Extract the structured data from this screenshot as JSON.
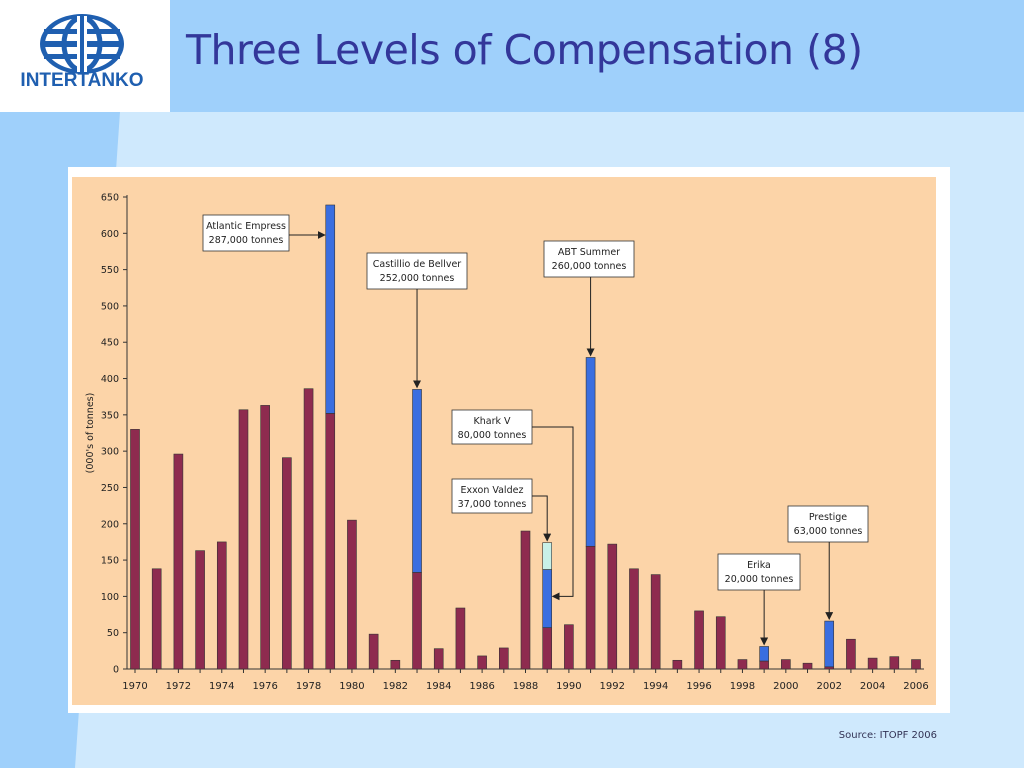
{
  "slide": {
    "title": "Three Levels of Compensation (8)",
    "source": "Source: ITOPF 2006"
  },
  "logo": {
    "text": "INTERTANKO",
    "icon": "globe-icon"
  },
  "colors": {
    "header_band": "#9fd0fb",
    "background": "#cfe9fd",
    "title": "#33379a",
    "plot_bg": "#fcd4a8",
    "bar_base": "#8e2b4f",
    "bar_large_spill": "#3a6ee0",
    "bar_exxon_valdez": "#c8f0e8"
  },
  "chart_data": {
    "type": "bar",
    "ylabel": "(000's of tonnes)",
    "xlabel": "",
    "ylim": [
      0,
      650
    ],
    "yticks": [
      0,
      50,
      100,
      150,
      200,
      250,
      300,
      350,
      400,
      450,
      500,
      550,
      600,
      650
    ],
    "xtick_labels": [
      "1970",
      "1972",
      "1974",
      "1976",
      "1978",
      "1980",
      "1982",
      "1984",
      "1986",
      "1988",
      "1990",
      "1992",
      "1994",
      "1996",
      "1998",
      "2000",
      "2002",
      "2004",
      "2006"
    ],
    "years": [
      1970,
      1971,
      1972,
      1973,
      1974,
      1975,
      1976,
      1977,
      1978,
      1979,
      1980,
      1981,
      1982,
      1983,
      1984,
      1985,
      1986,
      1987,
      1988,
      1989,
      1990,
      1991,
      1992,
      1993,
      1994,
      1995,
      1996,
      1997,
      1998,
      1999,
      2000,
      2001,
      2002,
      2003,
      2004,
      2005,
      2006
    ],
    "series": [
      {
        "key": "base",
        "values": [
          330,
          138,
          296,
          163,
          175,
          357,
          363,
          291,
          386,
          352,
          205,
          48,
          12,
          133,
          28,
          84,
          18,
          29,
          190,
          57,
          61,
          169,
          172,
          138,
          130,
          12,
          80,
          72,
          13,
          11,
          13,
          8,
          3,
          41,
          15,
          17,
          13
        ]
      },
      {
        "key": "large_spill",
        "values": [
          0,
          0,
          0,
          0,
          0,
          0,
          0,
          0,
          0,
          287,
          0,
          0,
          0,
          252,
          0,
          0,
          0,
          0,
          0,
          80,
          0,
          260,
          0,
          0,
          0,
          0,
          0,
          0,
          0,
          20,
          0,
          0,
          63,
          0,
          0,
          0,
          0
        ]
      },
      {
        "key": "exxon_valdez",
        "values": [
          0,
          0,
          0,
          0,
          0,
          0,
          0,
          0,
          0,
          0,
          0,
          0,
          0,
          0,
          0,
          0,
          0,
          0,
          0,
          37,
          0,
          0,
          0,
          0,
          0,
          0,
          0,
          0,
          0,
          0,
          0,
          0,
          0,
          0,
          0,
          0,
          0
        ]
      }
    ],
    "annotations": [
      {
        "line1": "Atlantic Empress",
        "line2": "287,000 tonnes",
        "year": 1979
      },
      {
        "line1": "Castillio de Bellver",
        "line2": "252,000 tonnes",
        "year": 1983
      },
      {
        "line1": "ABT Summer",
        "line2": "260,000 tonnes",
        "year": 1991
      },
      {
        "line1": "Khark V",
        "line2": "80,000 tonnes",
        "year": 1989
      },
      {
        "line1": "Exxon Valdez",
        "line2": "37,000 tonnes",
        "year": 1989
      },
      {
        "line1": "Erika",
        "line2": "20,000 tonnes",
        "year": 1999
      },
      {
        "line1": "Prestige",
        "line2": "63,000 tonnes",
        "year": 2002
      }
    ],
    "grid": false,
    "legend": "none"
  }
}
